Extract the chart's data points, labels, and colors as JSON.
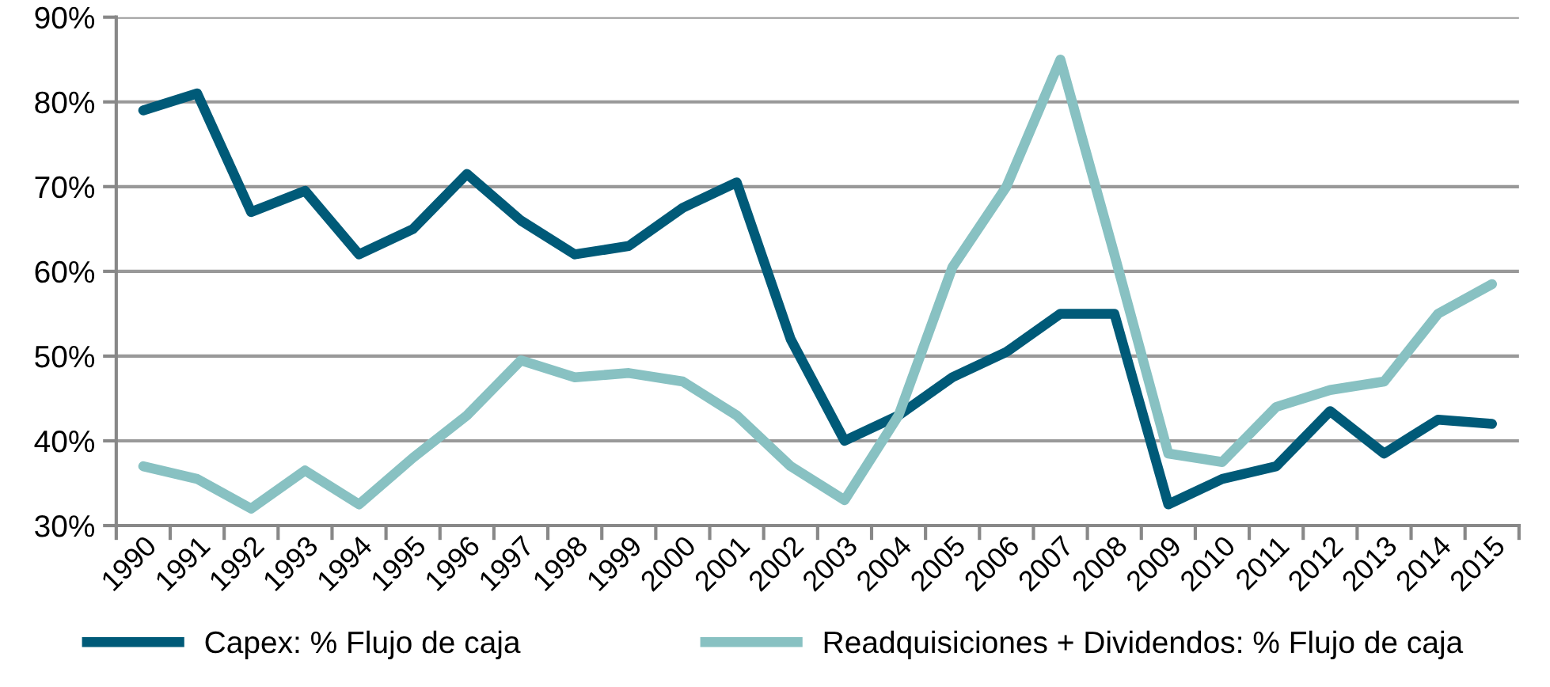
{
  "chart_data": {
    "type": "line",
    "categories": [
      "1990",
      "1991",
      "1992",
      "1993",
      "1994",
      "1995",
      "1996",
      "1997",
      "1998",
      "1999",
      "2000",
      "2001",
      "2002",
      "2003",
      "2004",
      "2005",
      "2006",
      "2007",
      "2008",
      "2009",
      "2010",
      "2011",
      "2012",
      "2013",
      "2014",
      "2015"
    ],
    "series": [
      {
        "name": "Capex: % Flujo de caja",
        "color": "#005a78",
        "values": [
          79,
          81,
          67,
          69.5,
          62,
          65,
          71.5,
          66,
          62,
          63,
          67.5,
          70.5,
          52,
          40,
          43,
          47.5,
          50.5,
          55,
          55,
          32.5,
          35.5,
          37,
          43.5,
          38.5,
          42.5,
          42
        ]
      },
      {
        "name": "Readquisiciones + Dividendos: % Flujo de caja",
        "color": "#88c1c2",
        "values": [
          37,
          35.5,
          32,
          36.5,
          32.5,
          38,
          43,
          49.5,
          47.5,
          48,
          47,
          43,
          37,
          33,
          43,
          60.5,
          70,
          85,
          62,
          38.5,
          37.5,
          44,
          46,
          47,
          55,
          58.5
        ]
      }
    ],
    "ylim": [
      30,
      90
    ],
    "yticks": [
      {
        "value": 30,
        "label": "30%"
      },
      {
        "value": 40,
        "label": "40%"
      },
      {
        "value": 50,
        "label": "50%"
      },
      {
        "value": 60,
        "label": "60%"
      },
      {
        "value": 70,
        "label": "70%"
      },
      {
        "value": 80,
        "label": "80%"
      },
      {
        "value": 90,
        "label": "90%"
      }
    ],
    "grid": "y",
    "legend": "bottom",
    "marker": "none",
    "line_style": "solid"
  }
}
